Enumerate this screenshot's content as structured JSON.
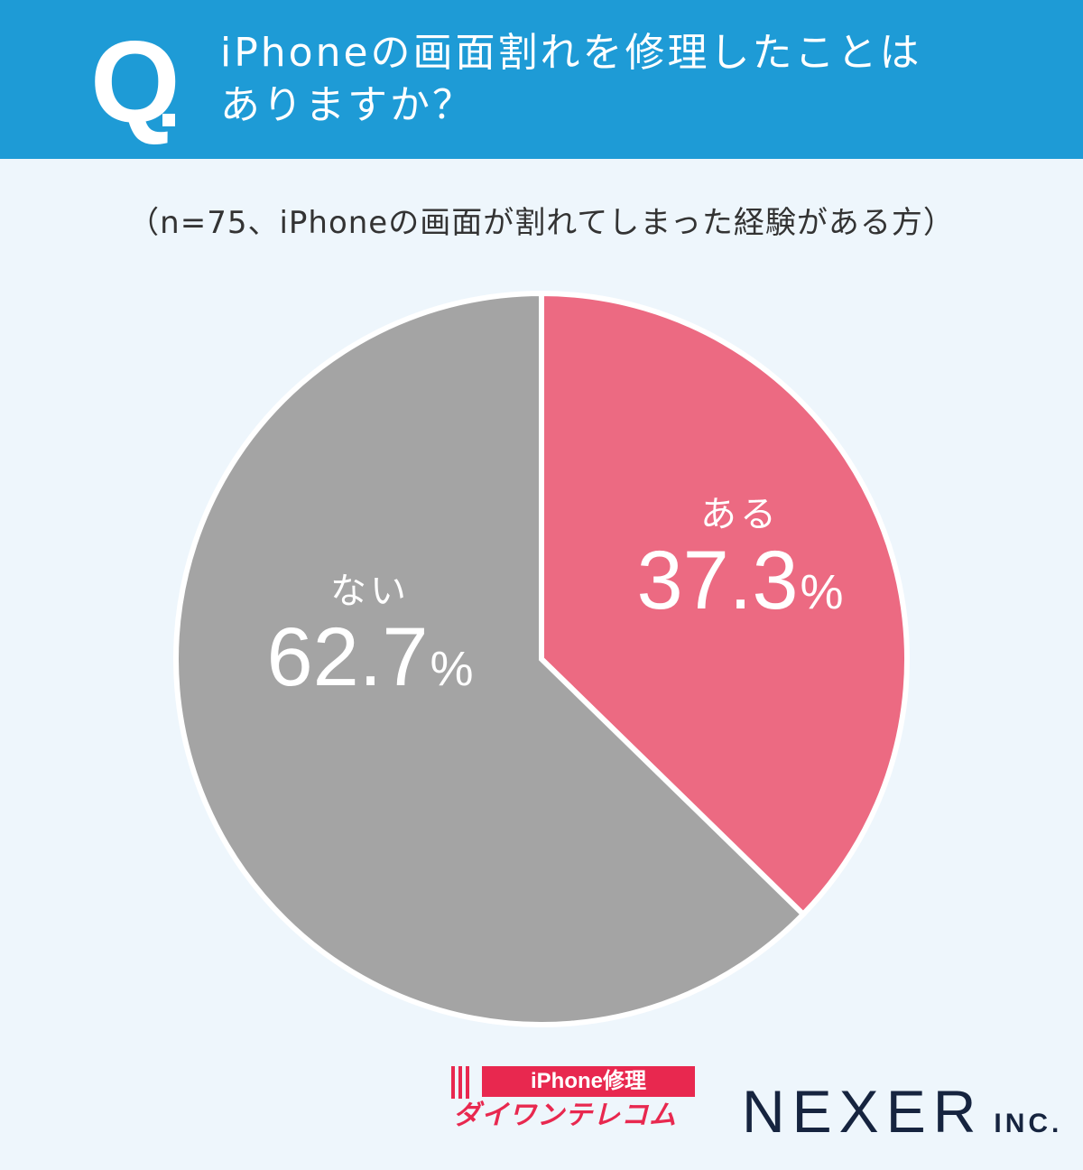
{
  "header": {
    "q_mark": "Q",
    "question_line1": "iPhoneの画面割れを修理したことは",
    "question_line2": "ありますか？",
    "background_color": "#1e9bd6"
  },
  "subtitle": "（n=75、iPhoneの画面が割れてしまった経験がある方）",
  "chart_data": {
    "type": "pie",
    "title": "iPhoneの画面割れを修理したことはありますか？",
    "subtitle": "（n=75、iPhoneの画面が割れてしまった経験がある方）",
    "categories": [
      "ある",
      "ない"
    ],
    "values": [
      37.3,
      62.7
    ],
    "unit": "%",
    "colors": [
      "#ec6a82",
      "#a4a4a4"
    ],
    "start_angle": "12 o'clock, clockwise",
    "legend": "none (labels inside slices)"
  },
  "labels": {
    "yes": {
      "name": "ある",
      "value": "37.3",
      "unit": "%"
    },
    "no": {
      "name": "ない",
      "value": "62.7",
      "unit": "%"
    }
  },
  "footer": {
    "daiwan_tagline": "iPhone修理",
    "daiwan_name": "ダイワンテレコム",
    "nexer_name": "NEXER",
    "nexer_suffix": "INC."
  }
}
